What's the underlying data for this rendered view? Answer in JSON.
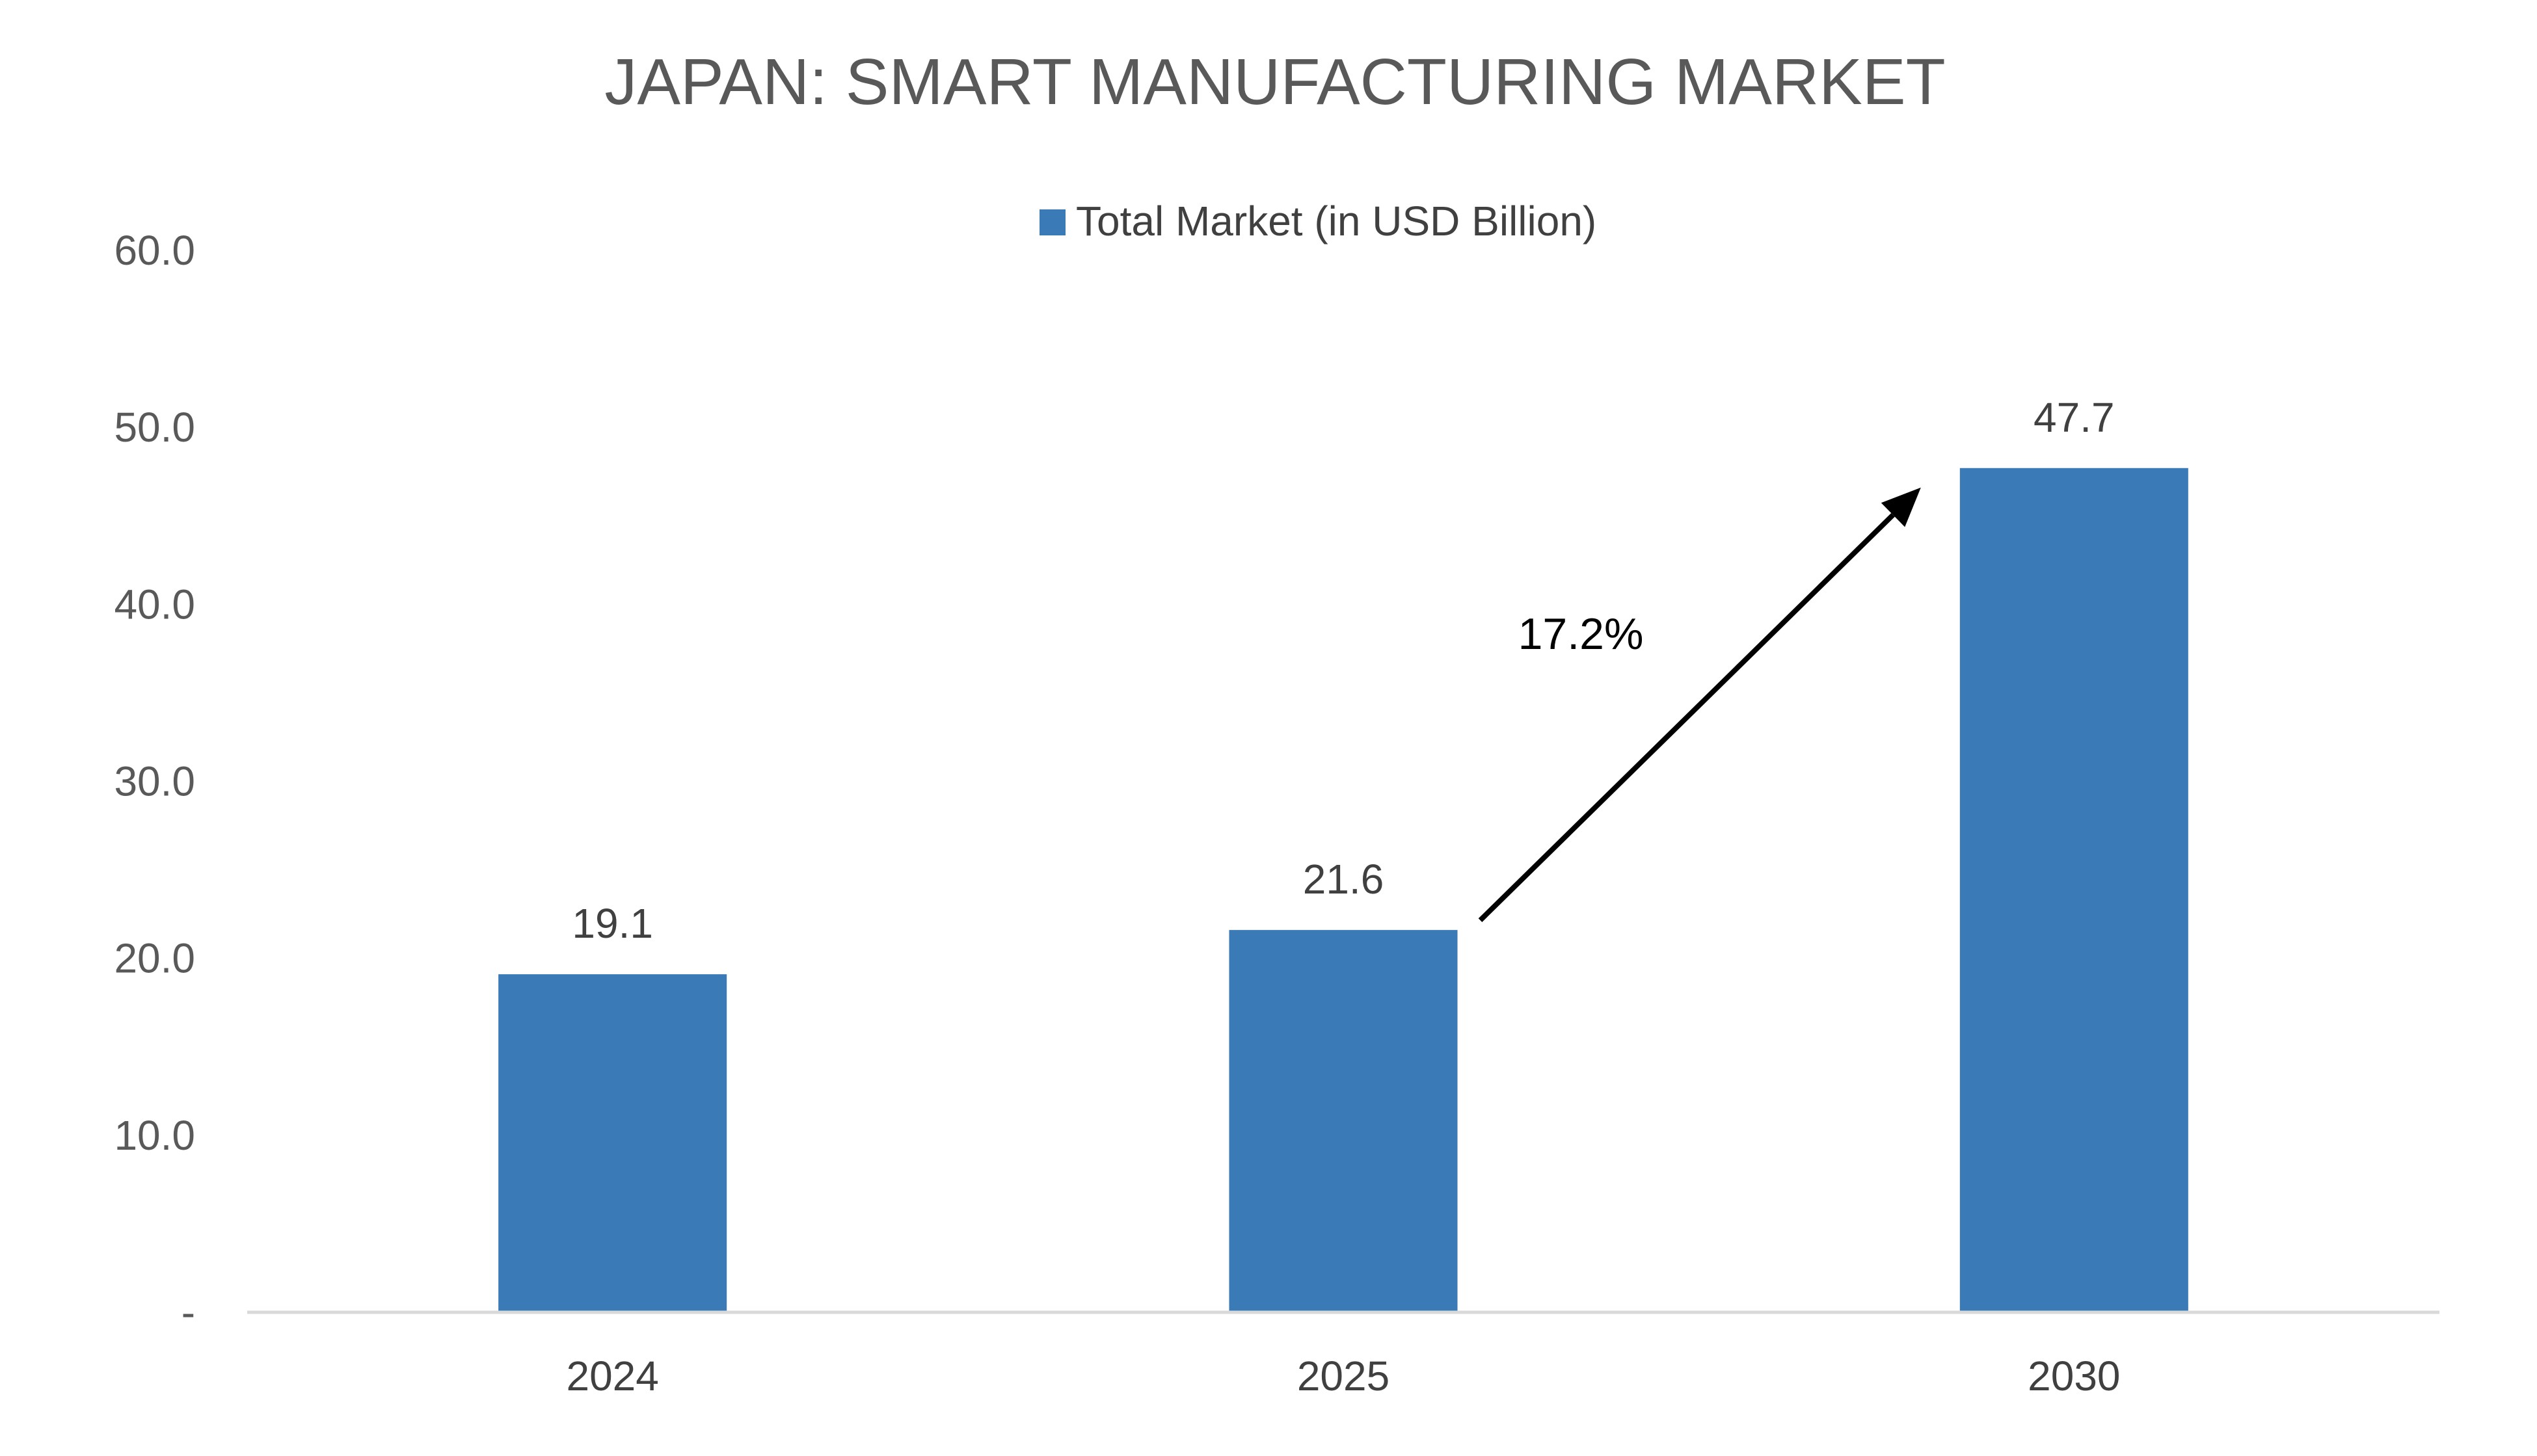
{
  "chart_data": {
    "type": "bar",
    "title": "JAPAN: SMART MANUFACTURING MARKET",
    "xlabel": "",
    "ylabel": "",
    "categories": [
      "2024",
      "2025",
      "2030"
    ],
    "series": [
      {
        "name": "Total Market (in USD Billion)",
        "values": [
          19.1,
          21.6,
          47.7
        ],
        "value_labels": [
          "19.1",
          "21.6",
          "47.7"
        ],
        "color": "#3A7AB7"
      }
    ],
    "ylim": [
      0,
      60
    ],
    "y_ticks": [
      {
        "value": 0,
        "label": "-"
      },
      {
        "value": 10,
        "label": "10.0"
      },
      {
        "value": 20,
        "label": "20.0"
      },
      {
        "value": 30,
        "label": "30.0"
      },
      {
        "value": 40,
        "label": "40.0"
      },
      {
        "value": 50,
        "label": "50.0"
      },
      {
        "value": 60,
        "label": "60.0"
      }
    ],
    "grid": false,
    "legend_position": "top-center",
    "annotation": {
      "text": "17.2%",
      "from_category": "2025",
      "to_category": "2030",
      "arrow": true
    },
    "colors": {
      "bar": "#3A7AB7",
      "axis": "#D9D9D9",
      "title": "#595959",
      "text": "#404040",
      "arrow": "#000000"
    }
  }
}
